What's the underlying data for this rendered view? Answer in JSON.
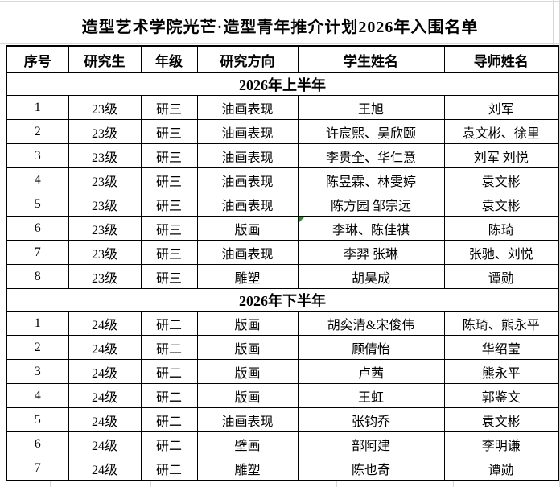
{
  "title": "造型艺术学院光芒·造型青年推介计划2026年入围名单",
  "colors": {
    "border": "#000000",
    "gridline": "#d9d9d9",
    "background": "#ffffff",
    "text": "#000000",
    "error_indicator": "#2e8b2e"
  },
  "table": {
    "headers": [
      "序号",
      "研究生",
      "年级",
      "研究方向",
      "学生姓名",
      "导师姓名"
    ],
    "column_keys": [
      "index",
      "cohort",
      "grade",
      "research-direction",
      "student-name",
      "advisor-name"
    ],
    "sections": [
      {
        "label": "2026年上半年",
        "rows": [
          [
            "1",
            "23级",
            "研三",
            "油画表现",
            "王旭",
            "刘军"
          ],
          [
            "2",
            "23级",
            "研三",
            "油画表现",
            "许宸熙、吴欣颐",
            "袁文彬、徐里"
          ],
          [
            "3",
            "23级",
            "研三",
            "油画表现",
            "李贵全、华仁意",
            "刘军 刘悦"
          ],
          [
            "4",
            "23级",
            "研三",
            "油画表现",
            "陈昱霖、林雯婷",
            "袁文彬"
          ],
          [
            "5",
            "23级",
            "研三",
            "油画表现",
            "陈方园 邹宗远",
            "袁文彬"
          ],
          [
            "6",
            "23级",
            "研三",
            "版画",
            "李琳、陈佳祺",
            "陈琦"
          ],
          [
            "7",
            "23级",
            "研三",
            "油画表现",
            "李羿 张琳",
            "张驰、刘悦"
          ],
          [
            "8",
            "23级",
            "研三",
            "雕塑",
            "胡昊成",
            "谭勋"
          ]
        ]
      },
      {
        "label": "2026年下半年",
        "rows": [
          [
            "1",
            "24级",
            "研二",
            "版画",
            "胡奕清&宋俊伟",
            "陈琦、熊永平"
          ],
          [
            "2",
            "24级",
            "研二",
            "版画",
            "顾倩怡",
            "华绍莹"
          ],
          [
            "3",
            "24级",
            "研二",
            "版画",
            "卢茜",
            "熊永平"
          ],
          [
            "4",
            "24级",
            "研二",
            "版画",
            "王虹",
            "郭鉴文"
          ],
          [
            "5",
            "24级",
            "研二",
            "油画表现",
            "张钧乔",
            "袁文彬"
          ],
          [
            "6",
            "24级",
            "研二",
            "壁画",
            "部阿建",
            "李明谦"
          ],
          [
            "7",
            "24级",
            "研二",
            "雕塑",
            "陈也奇",
            "谭勋"
          ]
        ]
      }
    ],
    "error_marker": {
      "section": 0,
      "row": 5,
      "col": 4
    }
  }
}
